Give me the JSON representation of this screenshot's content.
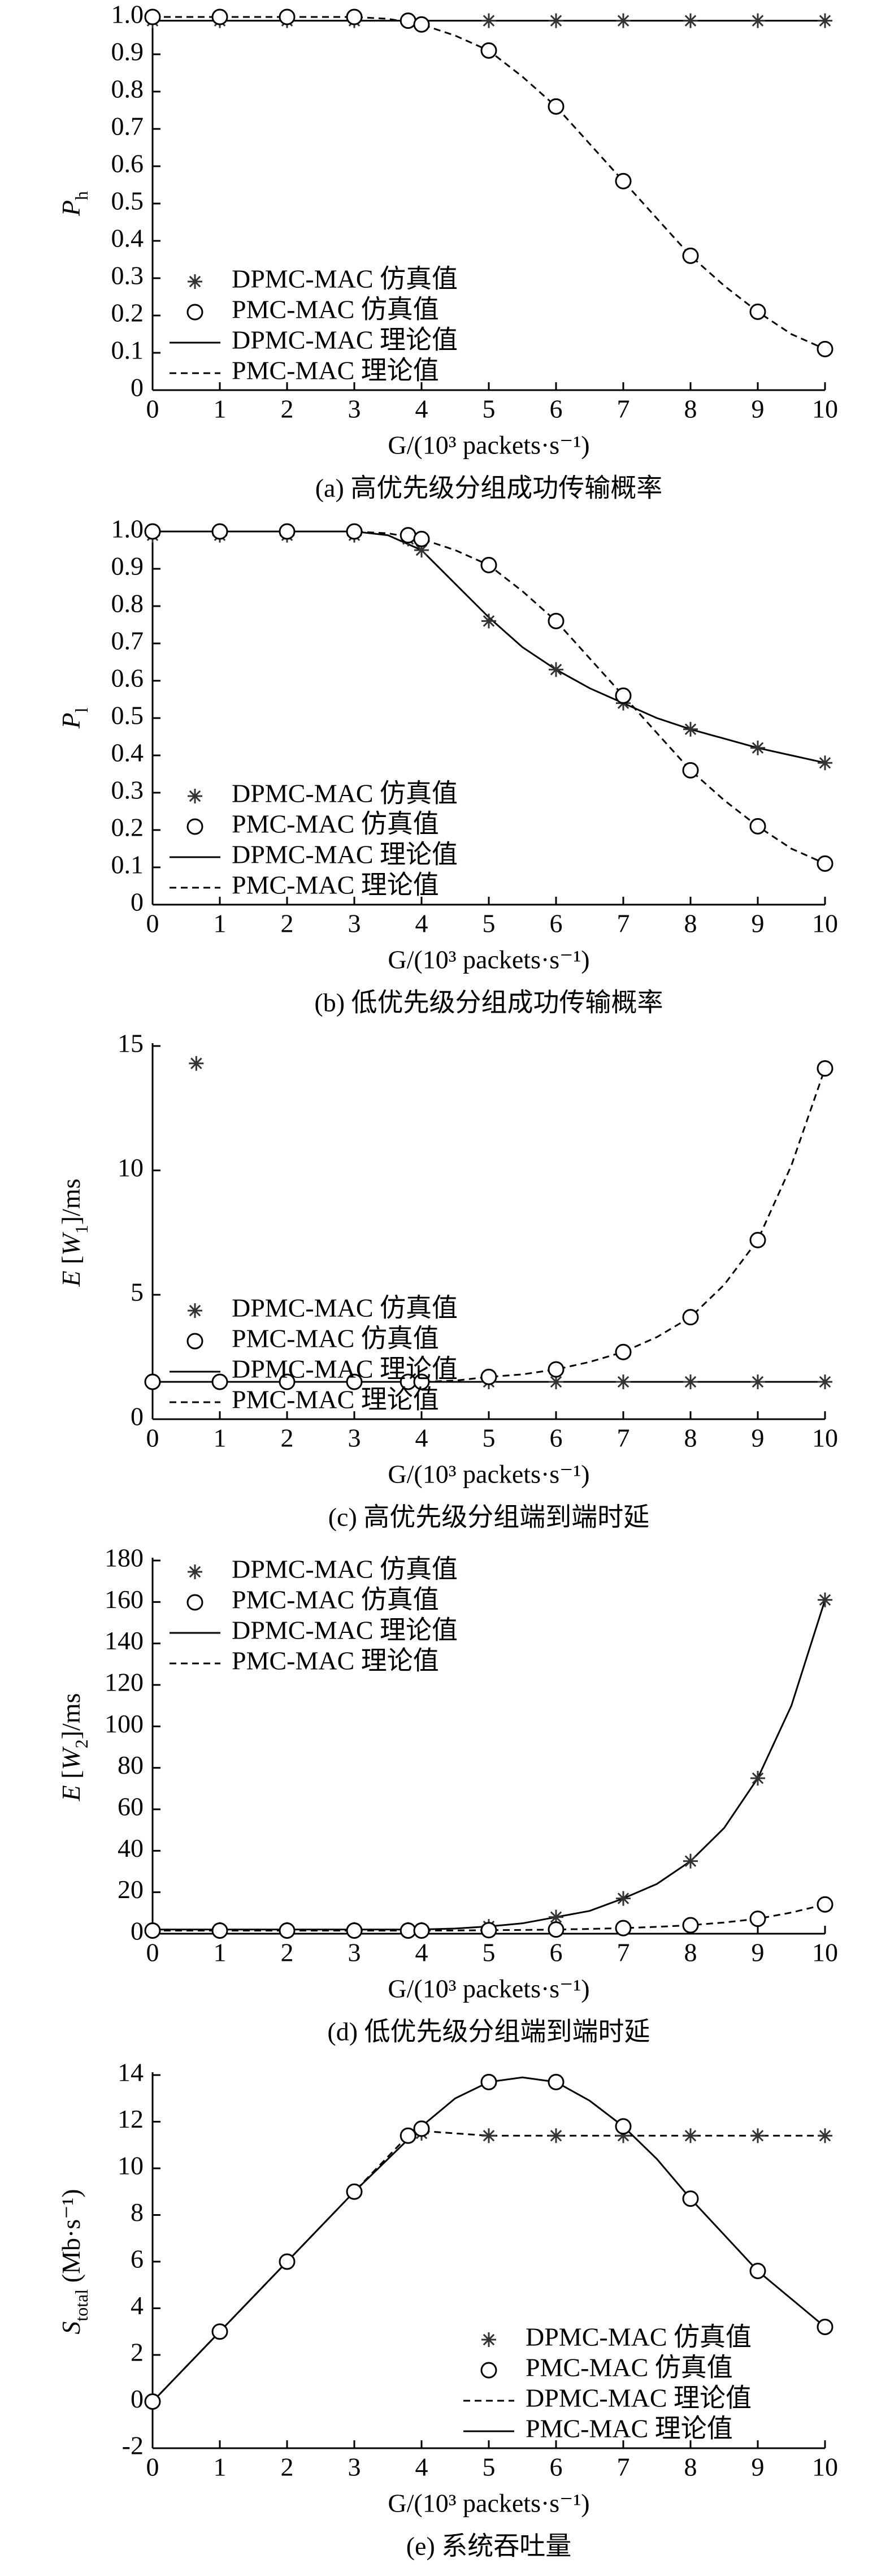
{
  "chart_data": [
    {
      "type": "line",
      "y_label": [
        {
          "text": "P",
          "italic": true
        },
        {
          "text": "h",
          "sub": true
        }
      ],
      "x_label": "G/(10³ packets·s⁻¹)",
      "caption": "(a) 高优先级分组成功传输概率",
      "xlim": [
        0,
        10
      ],
      "xticks": [
        0,
        1,
        2,
        3,
        4,
        5,
        6,
        7,
        8,
        9,
        10
      ],
      "ylim": [
        0,
        1
      ],
      "yticks": [
        0,
        0.1,
        0.2,
        0.3,
        0.4,
        0.5,
        0.6,
        0.7,
        0.8,
        0.9,
        {
          "value": 1,
          "label": "1.0"
        }
      ],
      "legend": "lower left",
      "series": [
        {
          "name": "DPMC-MAC 仿真值",
          "color": "#333333",
          "style": "star",
          "x": [
            0,
            1,
            2,
            3,
            3.8,
            5,
            6,
            7,
            8,
            9,
            10
          ],
          "values": [
            0.99,
            0.99,
            0.99,
            0.99,
            0.99,
            0.99,
            0.99,
            0.99,
            0.99,
            0.99,
            0.99
          ]
        },
        {
          "name": "PMC-MAC 仿真值",
          "color": "#000000",
          "style": "circle",
          "x": [
            0,
            1,
            2,
            3,
            3.8,
            4,
            5,
            6,
            7,
            8,
            9,
            10
          ],
          "values": [
            1,
            1,
            1,
            1,
            0.99,
            0.98,
            0.91,
            0.76,
            0.56,
            0.36,
            0.21,
            0.11
          ]
        },
        {
          "name": "DPMC-MAC 理论值",
          "color": "#000000",
          "style": "solid",
          "x": [
            0,
            10
          ],
          "values": [
            0.99,
            0.99
          ]
        },
        {
          "name": "PMC-MAC 理论值",
          "color": "#000000",
          "style": "dashed",
          "x": [
            0,
            1,
            2,
            3,
            3.5,
            4,
            4.5,
            5,
            5.5,
            6,
            6.5,
            7,
            7.5,
            8,
            8.5,
            9,
            9.5,
            10
          ],
          "values": [
            1,
            1,
            1,
            1,
            0.995,
            0.98,
            0.95,
            0.91,
            0.84,
            0.76,
            0.66,
            0.56,
            0.46,
            0.36,
            0.28,
            0.21,
            0.15,
            0.11
          ]
        }
      ]
    },
    {
      "type": "line",
      "y_label": [
        {
          "text": "P",
          "italic": true
        },
        {
          "text": "l",
          "sub": true
        }
      ],
      "x_label": "G/(10³ packets·s⁻¹)",
      "caption": "(b) 低优先级分组成功传输概率",
      "xlim": [
        0,
        10
      ],
      "xticks": [
        0,
        1,
        2,
        3,
        4,
        5,
        6,
        7,
        8,
        9,
        10
      ],
      "ylim": [
        0,
        1
      ],
      "yticks": [
        0,
        0.1,
        0.2,
        0.3,
        0.4,
        0.5,
        0.6,
        0.7,
        0.8,
        0.9,
        {
          "value": 1,
          "label": "1.0"
        }
      ],
      "legend": "lower left",
      "series": [
        {
          "name": "DPMC-MAC 仿真值",
          "color": "#333333",
          "style": "star",
          "x": [
            0,
            1,
            2,
            3,
            3.8,
            4,
            5,
            6,
            7,
            8,
            9,
            10
          ],
          "values": [
            0.99,
            0.99,
            0.99,
            0.99,
            0.98,
            0.95,
            0.76,
            0.63,
            0.54,
            0.47,
            0.42,
            0.38
          ]
        },
        {
          "name": "PMC-MAC 仿真值",
          "color": "#000000",
          "style": "circle",
          "x": [
            0,
            1,
            2,
            3,
            3.8,
            4,
            5,
            6,
            7,
            8,
            9,
            10
          ],
          "values": [
            1,
            1,
            1,
            1,
            0.99,
            0.98,
            0.91,
            0.76,
            0.56,
            0.36,
            0.21,
            0.11
          ]
        },
        {
          "name": "DPMC-MAC 理论值",
          "color": "#000000",
          "style": "solid",
          "x": [
            0,
            1,
            2,
            3,
            3.5,
            4,
            4.5,
            5,
            5.5,
            6,
            6.5,
            7,
            7.5,
            8,
            9,
            10
          ],
          "values": [
            1,
            1,
            1,
            1,
            0.99,
            0.95,
            0.86,
            0.77,
            0.69,
            0.63,
            0.58,
            0.54,
            0.5,
            0.47,
            0.42,
            0.38
          ]
        },
        {
          "name": "PMC-MAC 理论值",
          "color": "#000000",
          "style": "dashed",
          "x": [
            0,
            1,
            2,
            3,
            3.5,
            4,
            4.5,
            5,
            5.5,
            6,
            6.5,
            7,
            7.5,
            8,
            8.5,
            9,
            9.5,
            10
          ],
          "values": [
            1,
            1,
            1,
            1,
            0.995,
            0.98,
            0.95,
            0.91,
            0.84,
            0.76,
            0.66,
            0.56,
            0.46,
            0.36,
            0.28,
            0.21,
            0.15,
            0.11
          ]
        }
      ]
    },
    {
      "type": "line",
      "y_label": [
        {
          "text": "E",
          "italic": true
        },
        {
          "text": " ["
        },
        {
          "text": "W",
          "italic": true
        },
        {
          "text": "1",
          "sub": true
        },
        {
          "text": "]/ms"
        }
      ],
      "x_label": "G/(10³ packets·s⁻¹)",
      "caption": "(c) 高优先级分组端到端时延",
      "xlim": [
        0,
        10
      ],
      "xticks": [
        0,
        1,
        2,
        3,
        4,
        5,
        6,
        7,
        8,
        9,
        10
      ],
      "ylim": [
        0,
        15
      ],
      "yticks": [
        0,
        5,
        10,
        15
      ],
      "legend": "lower left",
      "series": [
        {
          "name": "DPMC-MAC 仿真值",
          "color": "#333333",
          "style": "star",
          "x": [
            0,
            0.65,
            1,
            2,
            3,
            3.8,
            4,
            5,
            6,
            7,
            8,
            9,
            10
          ],
          "values": [
            1.5,
            14.3,
            1.5,
            1.5,
            1.5,
            1.5,
            1.5,
            1.5,
            1.5,
            1.5,
            1.5,
            1.5,
            1.5
          ]
        },
        {
          "name": "PMC-MAC 仿真值",
          "color": "#000000",
          "style": "circle",
          "x": [
            0,
            1,
            2,
            3,
            3.8,
            4,
            5,
            6,
            7,
            8,
            9,
            10
          ],
          "values": [
            1.5,
            1.5,
            1.5,
            1.5,
            1.5,
            1.5,
            1.7,
            2,
            2.7,
            4.1,
            7.2,
            14.1
          ]
        },
        {
          "name": "DPMC-MAC 理论值",
          "color": "#000000",
          "style": "solid",
          "x": [
            0,
            10
          ],
          "values": [
            1.5,
            1.5
          ]
        },
        {
          "name": "PMC-MAC 理论值",
          "color": "#000000",
          "style": "dashed",
          "x": [
            0,
            1,
            2,
            3,
            4,
            4.5,
            5,
            5.5,
            6,
            6.5,
            7,
            7.5,
            8,
            8.5,
            9,
            9.5,
            10
          ],
          "values": [
            1.5,
            1.5,
            1.5,
            1.5,
            1.5,
            1.55,
            1.7,
            1.8,
            2,
            2.3,
            2.7,
            3.3,
            4.1,
            5.4,
            7.2,
            10.2,
            14.1
          ]
        }
      ]
    },
    {
      "type": "line",
      "y_label": [
        {
          "text": "E",
          "italic": true
        },
        {
          "text": " ["
        },
        {
          "text": "W",
          "italic": true
        },
        {
          "text": "2",
          "sub": true
        },
        {
          "text": "]/ms"
        }
      ],
      "x_label": "G/(10³ packets·s⁻¹)",
      "caption": "(d) 低优先级分组端到端时延",
      "xlim": [
        0,
        10
      ],
      "xticks": [
        0,
        1,
        2,
        3,
        4,
        5,
        6,
        7,
        8,
        9,
        10
      ],
      "ylim": [
        0,
        180
      ],
      "yticks": [
        0,
        20,
        40,
        60,
        80,
        100,
        120,
        140,
        160,
        180
      ],
      "legend": "upper left",
      "series": [
        {
          "name": "DPMC-MAC 仿真值",
          "color": "#333333",
          "style": "star",
          "x": [
            0,
            1,
            2,
            3,
            3.8,
            4,
            5,
            6,
            7,
            8,
            9,
            10
          ],
          "values": [
            2,
            2,
            2,
            2,
            2,
            2,
            3.5,
            8,
            17,
            35,
            75,
            161
          ]
        },
        {
          "name": "PMC-MAC 仿真值",
          "color": "#000000",
          "style": "circle",
          "x": [
            0,
            1,
            2,
            3,
            3.8,
            4,
            5,
            6,
            7,
            8,
            9,
            10
          ],
          "values": [
            1.5,
            1.5,
            1.5,
            1.5,
            1.5,
            1.5,
            1.7,
            2,
            2.7,
            4.1,
            7.2,
            14.1
          ]
        },
        {
          "name": "DPMC-MAC 理论值",
          "color": "#000000",
          "style": "solid",
          "x": [
            0,
            1,
            2,
            3,
            4,
            4.5,
            5,
            5.5,
            6,
            6.5,
            7,
            7.5,
            8,
            8.5,
            9,
            9.5,
            10
          ],
          "values": [
            2,
            2,
            2,
            2,
            2,
            2.5,
            3.5,
            5,
            8,
            11,
            17,
            24,
            35,
            51,
            75,
            110,
            161
          ]
        },
        {
          "name": "PMC-MAC 理论值",
          "color": "#000000",
          "style": "dashed",
          "x": [
            0,
            1,
            2,
            3,
            4,
            4.5,
            5,
            5.5,
            6,
            6.5,
            7,
            7.5,
            8,
            8.5,
            9,
            9.5,
            10
          ],
          "values": [
            1.5,
            1.5,
            1.5,
            1.5,
            1.5,
            1.55,
            1.7,
            1.8,
            2,
            2.3,
            2.7,
            3.3,
            4.1,
            5.4,
            7.2,
            10.2,
            14.1
          ]
        }
      ]
    },
    {
      "type": "line",
      "y_label": [
        {
          "text": "S",
          "italic": true
        },
        {
          "text": "total",
          "sub": true
        },
        {
          "text": " (Mb·s⁻¹)"
        }
      ],
      "x_label": "G/(10³ packets·s⁻¹)",
      "caption": "(e) 系统吞吐量",
      "xlim": [
        0,
        10
      ],
      "xticks": [
        0,
        1,
        2,
        3,
        4,
        5,
        6,
        7,
        8,
        9,
        10
      ],
      "ylim": [
        -2,
        14
      ],
      "yticks": [
        -2,
        0,
        2,
        4,
        6,
        8,
        10,
        12,
        14
      ],
      "legend": "lower right",
      "series": [
        {
          "name": "DPMC-MAC 仿真值",
          "color": "#333333",
          "style": "star",
          "x": [
            0,
            1,
            2,
            3,
            3.8,
            4,
            5,
            6,
            7,
            8,
            9,
            10
          ],
          "values": [
            0,
            3,
            6,
            9,
            11.4,
            11.5,
            11.4,
            11.4,
            11.4,
            11.4,
            11.4,
            11.4
          ]
        },
        {
          "name": "PMC-MAC 仿真值",
          "color": "#000000",
          "style": "circle",
          "x": [
            0,
            1,
            2,
            3,
            3.8,
            4,
            5,
            6,
            7,
            8,
            9,
            10
          ],
          "values": [
            0,
            3,
            6,
            9,
            11.4,
            11.7,
            13.7,
            13.7,
            11.8,
            8.7,
            5.6,
            3.2
          ]
        },
        {
          "name": "DPMC-MAC 理论值",
          "color": "#000000",
          "style": "dashed",
          "x": [
            0,
            1,
            2,
            3,
            3.8,
            4,
            5,
            6,
            7,
            8,
            9,
            10
          ],
          "values": [
            0,
            3,
            6,
            9,
            11.4,
            11.6,
            11.4,
            11.4,
            11.4,
            11.4,
            11.4,
            11.4
          ]
        },
        {
          "name": "PMC-MAC 理论值",
          "color": "#000000",
          "style": "solid",
          "x": [
            0,
            1,
            2,
            3,
            4,
            4.5,
            5,
            5.5,
            6,
            6.5,
            7,
            7.5,
            8,
            9,
            10
          ],
          "values": [
            0,
            3,
            6,
            9,
            11.8,
            13,
            13.7,
            13.9,
            13.7,
            12.9,
            11.8,
            10.4,
            8.7,
            5.6,
            3.2
          ]
        }
      ]
    }
  ]
}
